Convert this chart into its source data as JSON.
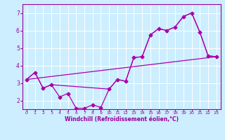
{
  "background_color": "#cceeff",
  "grid_color": "#ffffff",
  "line_color": "#aa00aa",
  "xlabel": "Windchill (Refroidissement éolien,°C)",
  "xlabel_color": "#990099",
  "tick_color": "#990099",
  "ylabel_vals": [
    2,
    3,
    4,
    5,
    6,
    7
  ],
  "xlim": [
    -0.5,
    23.5
  ],
  "ylim": [
    1.5,
    7.5
  ],
  "line1_x": [
    0,
    1,
    2,
    3,
    4,
    5,
    6,
    7,
    8,
    9,
    10,
    11,
    12,
    13,
    14,
    15,
    16,
    17,
    18,
    19,
    20,
    21,
    22,
    23
  ],
  "line1_y": [
    3.2,
    3.6,
    2.7,
    2.9,
    2.2,
    2.4,
    1.55,
    1.55,
    1.75,
    1.6,
    2.65,
    3.2,
    3.1,
    4.45,
    4.5,
    5.75,
    6.1,
    6.0,
    6.2,
    6.8,
    7.0,
    5.9,
    4.55,
    4.5
  ],
  "line2_x": [
    0,
    1,
    2,
    3,
    10,
    11,
    12,
    13,
    14,
    15,
    16,
    17,
    18,
    19,
    20,
    21,
    22,
    23
  ],
  "line2_y": [
    3.2,
    3.6,
    2.7,
    2.9,
    2.65,
    3.2,
    3.1,
    4.45,
    4.5,
    5.75,
    6.1,
    6.0,
    6.2,
    6.8,
    7.0,
    5.9,
    4.55,
    4.5
  ],
  "line3_x": [
    0,
    23
  ],
  "line3_y": [
    3.2,
    4.5
  ]
}
